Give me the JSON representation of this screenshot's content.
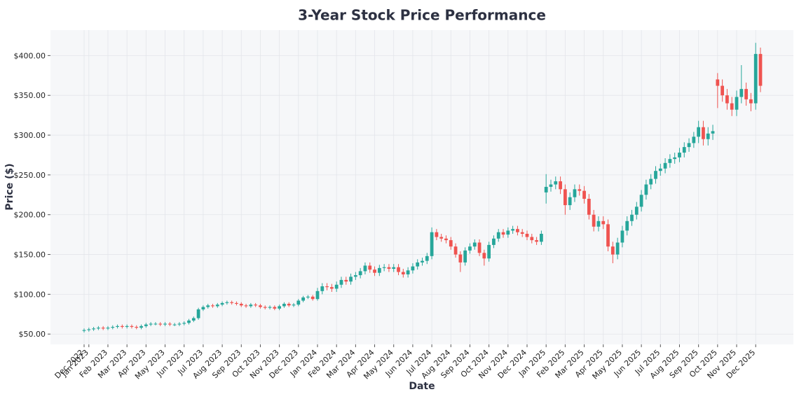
{
  "chart_data": {
    "type": "candlestick",
    "title": "3-Year Stock Price Performance",
    "x_label": "Date",
    "y_label": "Price ($)",
    "categories": [
      "Dec 2022",
      "Jan 2023",
      null,
      null,
      null,
      "Feb 2023",
      null,
      null,
      null,
      "Mar 2023",
      null,
      null,
      null,
      "Apr 2023",
      null,
      null,
      null,
      "May 2023",
      null,
      null,
      null,
      "Jun 2023",
      null,
      null,
      null,
      "Jul 2023",
      null,
      null,
      null,
      "Aug 2023",
      null,
      null,
      null,
      "Sep 2023",
      null,
      null,
      null,
      "Oct 2023",
      null,
      null,
      null,
      "Nov 2023",
      null,
      null,
      null,
      "Dec 2023",
      null,
      null,
      null,
      "Jan 2024",
      null,
      null,
      null,
      "Feb 2024",
      null,
      null,
      null,
      "Mar 2024",
      null,
      null,
      null,
      "Apr 2024",
      null,
      null,
      null,
      "May 2024",
      null,
      null,
      null,
      "Jun 2024",
      null,
      null,
      null,
      "Jul 2024",
      null,
      null,
      null,
      "Aug 2024",
      null,
      null,
      null,
      "Sep 2024",
      null,
      null,
      null,
      "Oct 2024",
      null,
      null,
      null,
      "Nov 2024",
      null,
      null,
      null,
      "Dec 2024",
      null,
      null,
      null,
      "Jan 2025",
      null,
      null,
      null,
      "Feb 2025",
      null,
      null,
      null,
      "Mar 2025",
      null,
      null,
      null,
      "Apr 2025",
      null,
      null,
      null,
      "May 2025",
      null,
      null,
      null,
      "Jun 2025",
      null,
      null,
      null,
      "Jul 2025",
      null,
      null,
      null,
      "Aug 2025",
      null,
      null,
      null,
      "Sep 2025",
      null,
      null,
      null,
      "Oct 2025",
      null,
      null,
      null,
      "Nov 2025",
      null,
      null,
      null,
      "Dec 2025",
      null
    ],
    "open": [
      54,
      55,
      56,
      57,
      58,
      57,
      58,
      59,
      60,
      59,
      60,
      59,
      58,
      60,
      62,
      63,
      63,
      62,
      63,
      62,
      62,
      63,
      64,
      67,
      70,
      81,
      84,
      86,
      85,
      87,
      89,
      90,
      89,
      88,
      86,
      85,
      87,
      86,
      84,
      83,
      84,
      82,
      85,
      88,
      86,
      87,
      92,
      96,
      97,
      94,
      104,
      110,
      109,
      107,
      112,
      118,
      116,
      122,
      124,
      129,
      136,
      131,
      127,
      133,
      134,
      132,
      134,
      128,
      125,
      130,
      135,
      140,
      142,
      148,
      178,
      172,
      170,
      168,
      160,
      150,
      140,
      155,
      160,
      165,
      152,
      145,
      162,
      170,
      178,
      175,
      180,
      182,
      178,
      176,
      172,
      168,
      166,
      228,
      235,
      238,
      242,
      232,
      212,
      222,
      232,
      230,
      220,
      200,
      185,
      192,
      188,
      160,
      150,
      165,
      180,
      192,
      200,
      210,
      225,
      238,
      245,
      255,
      258,
      265,
      270,
      272,
      278,
      285,
      290,
      298,
      310,
      295,
      302,
      370,
      362,
      350,
      340,
      332,
      348,
      358,
      345,
      340,
      402
    ],
    "high": [
      57,
      58,
      59,
      60,
      60,
      60,
      61,
      62,
      62,
      62,
      62,
      61,
      62,
      64,
      65,
      65,
      65,
      65,
      65,
      64,
      65,
      66,
      69,
      72,
      83,
      86,
      88,
      88,
      89,
      91,
      92,
      92,
      91,
      90,
      88,
      89,
      89,
      88,
      86,
      86,
      86,
      87,
      90,
      90,
      89,
      94,
      98,
      99,
      99,
      108,
      114,
      114,
      113,
      116,
      122,
      122,
      126,
      128,
      133,
      140,
      140,
      135,
      137,
      138,
      138,
      138,
      138,
      132,
      134,
      139,
      144,
      146,
      152,
      184,
      182,
      176,
      174,
      172,
      164,
      154,
      159,
      164,
      169,
      169,
      156,
      166,
      174,
      182,
      182,
      184,
      186,
      186,
      182,
      180,
      176,
      172,
      180,
      251,
      244,
      248,
      248,
      238,
      228,
      238,
      238,
      236,
      226,
      206,
      198,
      198,
      194,
      166,
      171,
      186,
      198,
      206,
      216,
      231,
      244,
      251,
      261,
      264,
      271,
      276,
      278,
      284,
      291,
      296,
      304,
      318,
      318,
      310,
      313,
      378,
      370,
      358,
      348,
      356,
      388,
      366,
      353,
      416,
      410
    ],
    "low": [
      52,
      53,
      54,
      55,
      55,
      55,
      56,
      57,
      57,
      57,
      57,
      56,
      56,
      58,
      60,
      61,
      60,
      60,
      60,
      60,
      60,
      61,
      62,
      65,
      68,
      79,
      82,
      83,
      83,
      85,
      87,
      87,
      86,
      84,
      83,
      83,
      84,
      82,
      81,
      81,
      80,
      80,
      83,
      84,
      84,
      85,
      90,
      94,
      92,
      92,
      100,
      105,
      103,
      103,
      108,
      112,
      112,
      118,
      120,
      125,
      127,
      123,
      123,
      129,
      128,
      128,
      124,
      121,
      121,
      126,
      131,
      136,
      138,
      144,
      168,
      166,
      164,
      156,
      146,
      128,
      136,
      151,
      156,
      148,
      136,
      141,
      158,
      166,
      171,
      171,
      176,
      174,
      172,
      168,
      164,
      162,
      162,
      214,
      229,
      232,
      226,
      200,
      206,
      216,
      224,
      214,
      194,
      179,
      179,
      182,
      154,
      139,
      144,
      159,
      174,
      186,
      194,
      204,
      219,
      232,
      239,
      249,
      252,
      259,
      264,
      266,
      272,
      279,
      284,
      290,
      287,
      287,
      294,
      334,
      342,
      332,
      324,
      324,
      340,
      337,
      330,
      332,
      354
    ],
    "close": [
      55,
      56,
      57,
      58,
      57,
      58,
      59,
      60,
      59,
      60,
      59,
      58,
      60,
      62,
      63,
      63,
      62,
      63,
      62,
      62,
      63,
      64,
      67,
      70,
      81,
      84,
      86,
      85,
      87,
      89,
      90,
      89,
      88,
      86,
      85,
      87,
      86,
      84,
      83,
      84,
      82,
      85,
      88,
      86,
      87,
      92,
      96,
      97,
      94,
      104,
      110,
      109,
      107,
      112,
      118,
      116,
      122,
      124,
      129,
      136,
      131,
      127,
      133,
      134,
      132,
      134,
      128,
      125,
      130,
      135,
      140,
      142,
      148,
      178,
      172,
      170,
      168,
      160,
      150,
      140,
      155,
      160,
      165,
      152,
      145,
      162,
      170,
      178,
      175,
      180,
      182,
      178,
      176,
      172,
      168,
      166,
      176,
      235,
      238,
      242,
      232,
      212,
      222,
      232,
      230,
      220,
      200,
      185,
      192,
      188,
      160,
      150,
      165,
      180,
      192,
      200,
      210,
      225,
      238,
      245,
      255,
      258,
      265,
      270,
      272,
      278,
      285,
      290,
      298,
      310,
      295,
      302,
      305,
      362,
      350,
      340,
      332,
      348,
      358,
      345,
      340,
      402,
      362
    ],
    "up_color": "#26a69a",
    "down_color": "#ef5350",
    "ylim": [
      37,
      432
    ],
    "yticks": [
      {
        "value": 50,
        "label": "$50.00"
      },
      {
        "value": 100,
        "label": "$100.00"
      },
      {
        "value": 150,
        "label": "$150.00"
      },
      {
        "value": 200,
        "label": "$200.00"
      },
      {
        "value": 250,
        "label": "$250.00"
      },
      {
        "value": 300,
        "label": "$300.00"
      },
      {
        "value": 350,
        "label": "$350.00"
      },
      {
        "value": 400,
        "label": "$400.00"
      }
    ],
    "grid": true
  }
}
